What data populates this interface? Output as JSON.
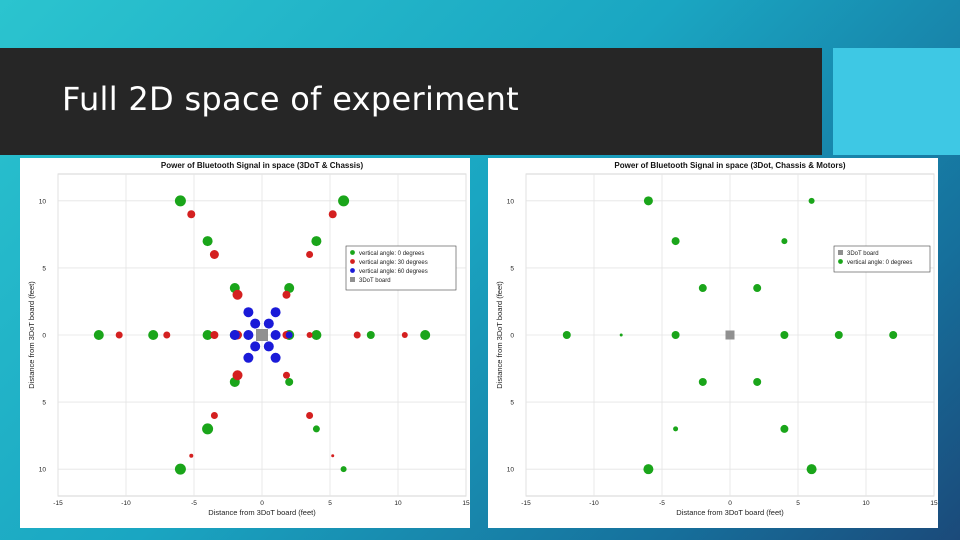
{
  "slide": {
    "title": "Full 2D space of experiment",
    "accent_color": "#3ec8e4",
    "title_bar_color": "#262626"
  },
  "chart_data": [
    {
      "type": "scatter",
      "title": "Power of Bluetooth Signal in space (3DoT & Chassis)",
      "xlabel": "Distance from 3DoT board (feet)",
      "ylabel": "Distance from 3DoT board (feet)",
      "xlim": [
        -15,
        15
      ],
      "ylim": [
        -12,
        12
      ],
      "xticks": [
        "-15",
        "-10",
        "-5",
        "0",
        "5",
        "10",
        "15"
      ],
      "yticks": [
        "10",
        "5",
        "0",
        "5",
        "10"
      ],
      "grid": true,
      "legend_position": "right-upper",
      "series": [
        {
          "name": "vertical angle: 0 degrees",
          "color": "#1aa51a",
          "points": [
            [
              -6,
              10,
              5.5
            ],
            [
              6,
              10,
              5.5
            ],
            [
              -4,
              7,
              5
            ],
            [
              4,
              7,
              5
            ],
            [
              -2,
              3.5,
              5
            ],
            [
              2,
              3.5,
              5
            ],
            [
              -12,
              0,
              5
            ],
            [
              -8,
              0,
              5
            ],
            [
              -4,
              0,
              5
            ],
            [
              -2,
              0,
              5
            ],
            [
              2,
              0,
              5
            ],
            [
              4,
              0,
              5
            ],
            [
              8,
              0,
              4
            ],
            [
              12,
              0,
              5
            ],
            [
              -2,
              -3.5,
              5
            ],
            [
              2,
              -3.5,
              4
            ],
            [
              -4,
              -7,
              5.5
            ],
            [
              4,
              -7,
              3.5
            ],
            [
              -6,
              -10,
              5.5
            ],
            [
              6,
              -10,
              3
            ]
          ]
        },
        {
          "name": "vertical angle: 30 degrees",
          "color": "#d42020",
          "points": [
            [
              -5.2,
              9,
              4
            ],
            [
              5.2,
              9,
              4
            ],
            [
              -3.5,
              6,
              4.5
            ],
            [
              3.5,
              6,
              3.5
            ],
            [
              -1.8,
              3,
              5
            ],
            [
              1.8,
              3,
              4
            ],
            [
              -10.5,
              0,
              3.5
            ],
            [
              -7,
              0,
              3.5
            ],
            [
              -3.5,
              0,
              4
            ],
            [
              -1.8,
              0,
              4.5
            ],
            [
              1.8,
              0,
              4
            ],
            [
              3.5,
              0,
              3
            ],
            [
              7,
              0,
              3.5
            ],
            [
              10.5,
              0,
              3
            ],
            [
              -1.8,
              -3,
              5
            ],
            [
              1.8,
              -3,
              3.5
            ],
            [
              -3.5,
              -6,
              3.5
            ],
            [
              3.5,
              -6,
              3.5
            ],
            [
              -5.2,
              -9,
              2
            ],
            [
              5.2,
              -9,
              1.5
            ]
          ]
        },
        {
          "name": "vertical angle: 60 degrees",
          "color": "#1a1ad8",
          "points": [
            [
              -1,
              1.7,
              5
            ],
            [
              1,
              1.7,
              5
            ],
            [
              -2,
              0,
              5
            ],
            [
              2,
              0,
              3.5
            ],
            [
              -1,
              -1.7,
              5
            ],
            [
              1,
              -1.7,
              5
            ],
            [
              -0.5,
              0.85,
              5
            ],
            [
              0.5,
              0.85,
              5
            ],
            [
              -1,
              0,
              5
            ],
            [
              1,
              0,
              5
            ],
            [
              -0.5,
              -0.85,
              5
            ],
            [
              0.5,
              -0.85,
              5
            ]
          ]
        },
        {
          "name": "3DoT board",
          "color": "#909090",
          "marker": "square",
          "points": [
            [
              0,
              0,
              6
            ]
          ]
        }
      ]
    },
    {
      "type": "scatter",
      "title": "Power of Bluetooth Signal in space (3Dot, Chassis & Motors)",
      "xlabel": "Distance from 3DoT board (feet)",
      "ylabel": "Distance from 3DoT board (feet)",
      "xlim": [
        -15,
        15
      ],
      "ylim": [
        -12,
        12
      ],
      "xticks": [
        "-15",
        "-10",
        "-5",
        "0",
        "5",
        "10",
        "15"
      ],
      "yticks": [
        "10",
        "5",
        "0",
        "5",
        "10"
      ],
      "grid": true,
      "legend_position": "right-upper",
      "series": [
        {
          "name": "3DoT board",
          "color": "#909090",
          "marker": "square",
          "points": [
            [
              0,
              0,
              4.5
            ]
          ]
        },
        {
          "name": "vertical angle: 0 degrees",
          "color": "#1aa51a",
          "points": [
            [
              -6,
              10,
              4.5
            ],
            [
              6,
              10,
              3
            ],
            [
              -4,
              7,
              4
            ],
            [
              4,
              7,
              3
            ],
            [
              -2,
              3.5,
              4
            ],
            [
              2,
              3.5,
              4
            ],
            [
              -12,
              0,
              4
            ],
            [
              -8,
              0,
              1.5
            ],
            [
              -4,
              0,
              4
            ],
            [
              4,
              0,
              4
            ],
            [
              8,
              0,
              4
            ],
            [
              12,
              0,
              4
            ],
            [
              -2,
              -3.5,
              4
            ],
            [
              2,
              -3.5,
              4
            ],
            [
              -4,
              -7,
              2.5
            ],
            [
              4,
              -7,
              4
            ],
            [
              -6,
              -10,
              5
            ],
            [
              6,
              -10,
              5
            ]
          ]
        }
      ]
    }
  ]
}
